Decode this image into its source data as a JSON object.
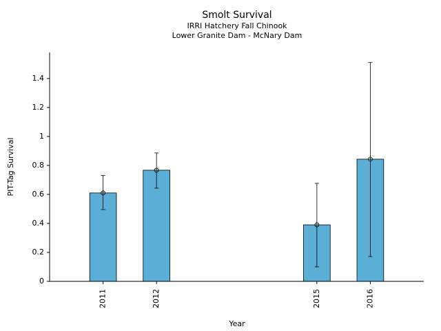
{
  "chart_data": {
    "type": "bar",
    "title": "Smolt Survival",
    "subtitle": [
      "IRRI Hatchery Fall Chinook",
      "Lower Granite Dam - McNary Dam"
    ],
    "x_label": "Year",
    "y_label": "PIT-Tag Survival",
    "x": [
      2011,
      2012,
      2015,
      2016
    ],
    "values": [
      0.61,
      0.767,
      0.39,
      0.843
    ],
    "lower": [
      0.495,
      0.643,
      0.1,
      0.171
    ],
    "upper": [
      0.73,
      0.886,
      0.676,
      1.51
    ],
    "color": "#5bafd6",
    "bar_width": 0.5,
    "xlim": [
      2010,
      2017
    ],
    "xticks": [
      2011,
      2012,
      2015,
      2016
    ],
    "ylim": [
      0,
      1.58
    ],
    "yticks": [
      0,
      0.2,
      0.4,
      0.6,
      0.8,
      1,
      1.2,
      1.4
    ]
  }
}
